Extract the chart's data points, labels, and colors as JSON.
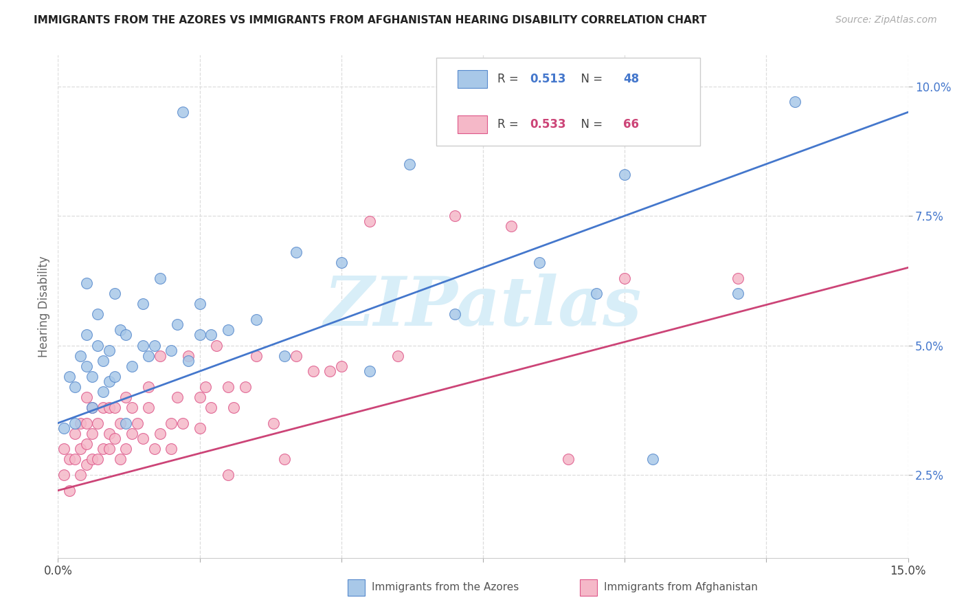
{
  "title": "IMMIGRANTS FROM THE AZORES VS IMMIGRANTS FROM AFGHANISTAN HEARING DISABILITY CORRELATION CHART",
  "source": "Source: ZipAtlas.com",
  "ylabel": "Hearing Disability",
  "xlim": [
    0.0,
    0.15
  ],
  "ylim": [
    0.009,
    0.106
  ],
  "xtick_vals": [
    0.0,
    0.025,
    0.05,
    0.075,
    0.1,
    0.125,
    0.15
  ],
  "xtick_labels": [
    "0.0%",
    "",
    "",
    "",
    "",
    "",
    "15.0%"
  ],
  "ytick_vals": [
    0.025,
    0.05,
    0.075,
    0.1
  ],
  "ytick_labels": [
    "2.5%",
    "5.0%",
    "7.5%",
    "10.0%"
  ],
  "legend_r1": "R = 0.513",
  "legend_n1": "N = 48",
  "legend_r2": "R = 0.533",
  "legend_n2": "N = 66",
  "color_blue_fill": "#a8c8e8",
  "color_pink_fill": "#f5b8c8",
  "color_blue_edge": "#5588cc",
  "color_pink_edge": "#dd5588",
  "line_blue": "#4477cc",
  "line_pink": "#cc4477",
  "watermark_text": "ZIPatlas",
  "watermark_color": "#d8eef8",
  "bottom_label1": "Immigrants from the Azores",
  "bottom_label2": "Immigrants from Afghanistan",
  "blue_line_start_y": 0.035,
  "blue_line_end_y": 0.095,
  "pink_line_start_y": 0.022,
  "pink_line_end_y": 0.065,
  "blue_x": [
    0.001,
    0.002,
    0.003,
    0.003,
    0.004,
    0.005,
    0.005,
    0.005,
    0.006,
    0.006,
    0.007,
    0.007,
    0.008,
    0.008,
    0.009,
    0.009,
    0.01,
    0.01,
    0.011,
    0.012,
    0.012,
    0.013,
    0.015,
    0.015,
    0.016,
    0.017,
    0.018,
    0.02,
    0.021,
    0.022,
    0.023,
    0.025,
    0.025,
    0.027,
    0.03,
    0.035,
    0.04,
    0.042,
    0.05,
    0.055,
    0.062,
    0.07,
    0.085,
    0.095,
    0.1,
    0.105,
    0.12,
    0.13
  ],
  "blue_y": [
    0.034,
    0.044,
    0.042,
    0.035,
    0.048,
    0.046,
    0.052,
    0.062,
    0.038,
    0.044,
    0.05,
    0.056,
    0.041,
    0.047,
    0.043,
    0.049,
    0.044,
    0.06,
    0.053,
    0.035,
    0.052,
    0.046,
    0.05,
    0.058,
    0.048,
    0.05,
    0.063,
    0.049,
    0.054,
    0.095,
    0.047,
    0.058,
    0.052,
    0.052,
    0.053,
    0.055,
    0.048,
    0.068,
    0.066,
    0.045,
    0.085,
    0.056,
    0.066,
    0.06,
    0.083,
    0.028,
    0.06,
    0.097
  ],
  "pink_x": [
    0.001,
    0.001,
    0.002,
    0.002,
    0.003,
    0.003,
    0.004,
    0.004,
    0.004,
    0.005,
    0.005,
    0.005,
    0.005,
    0.006,
    0.006,
    0.006,
    0.007,
    0.007,
    0.008,
    0.008,
    0.009,
    0.009,
    0.009,
    0.01,
    0.01,
    0.011,
    0.011,
    0.012,
    0.012,
    0.013,
    0.013,
    0.014,
    0.015,
    0.016,
    0.016,
    0.017,
    0.018,
    0.018,
    0.02,
    0.02,
    0.021,
    0.022,
    0.023,
    0.025,
    0.025,
    0.026,
    0.027,
    0.028,
    0.03,
    0.03,
    0.031,
    0.033,
    0.035,
    0.038,
    0.04,
    0.042,
    0.045,
    0.048,
    0.05,
    0.055,
    0.06,
    0.07,
    0.08,
    0.09,
    0.1,
    0.12
  ],
  "pink_y": [
    0.025,
    0.03,
    0.022,
    0.028,
    0.028,
    0.033,
    0.025,
    0.03,
    0.035,
    0.027,
    0.031,
    0.035,
    0.04,
    0.028,
    0.033,
    0.038,
    0.028,
    0.035,
    0.03,
    0.038,
    0.03,
    0.033,
    0.038,
    0.032,
    0.038,
    0.028,
    0.035,
    0.03,
    0.04,
    0.033,
    0.038,
    0.035,
    0.032,
    0.038,
    0.042,
    0.03,
    0.033,
    0.048,
    0.03,
    0.035,
    0.04,
    0.035,
    0.048,
    0.034,
    0.04,
    0.042,
    0.038,
    0.05,
    0.025,
    0.042,
    0.038,
    0.042,
    0.048,
    0.035,
    0.028,
    0.048,
    0.045,
    0.045,
    0.046,
    0.074,
    0.048,
    0.075,
    0.073,
    0.028,
    0.063,
    0.063
  ]
}
